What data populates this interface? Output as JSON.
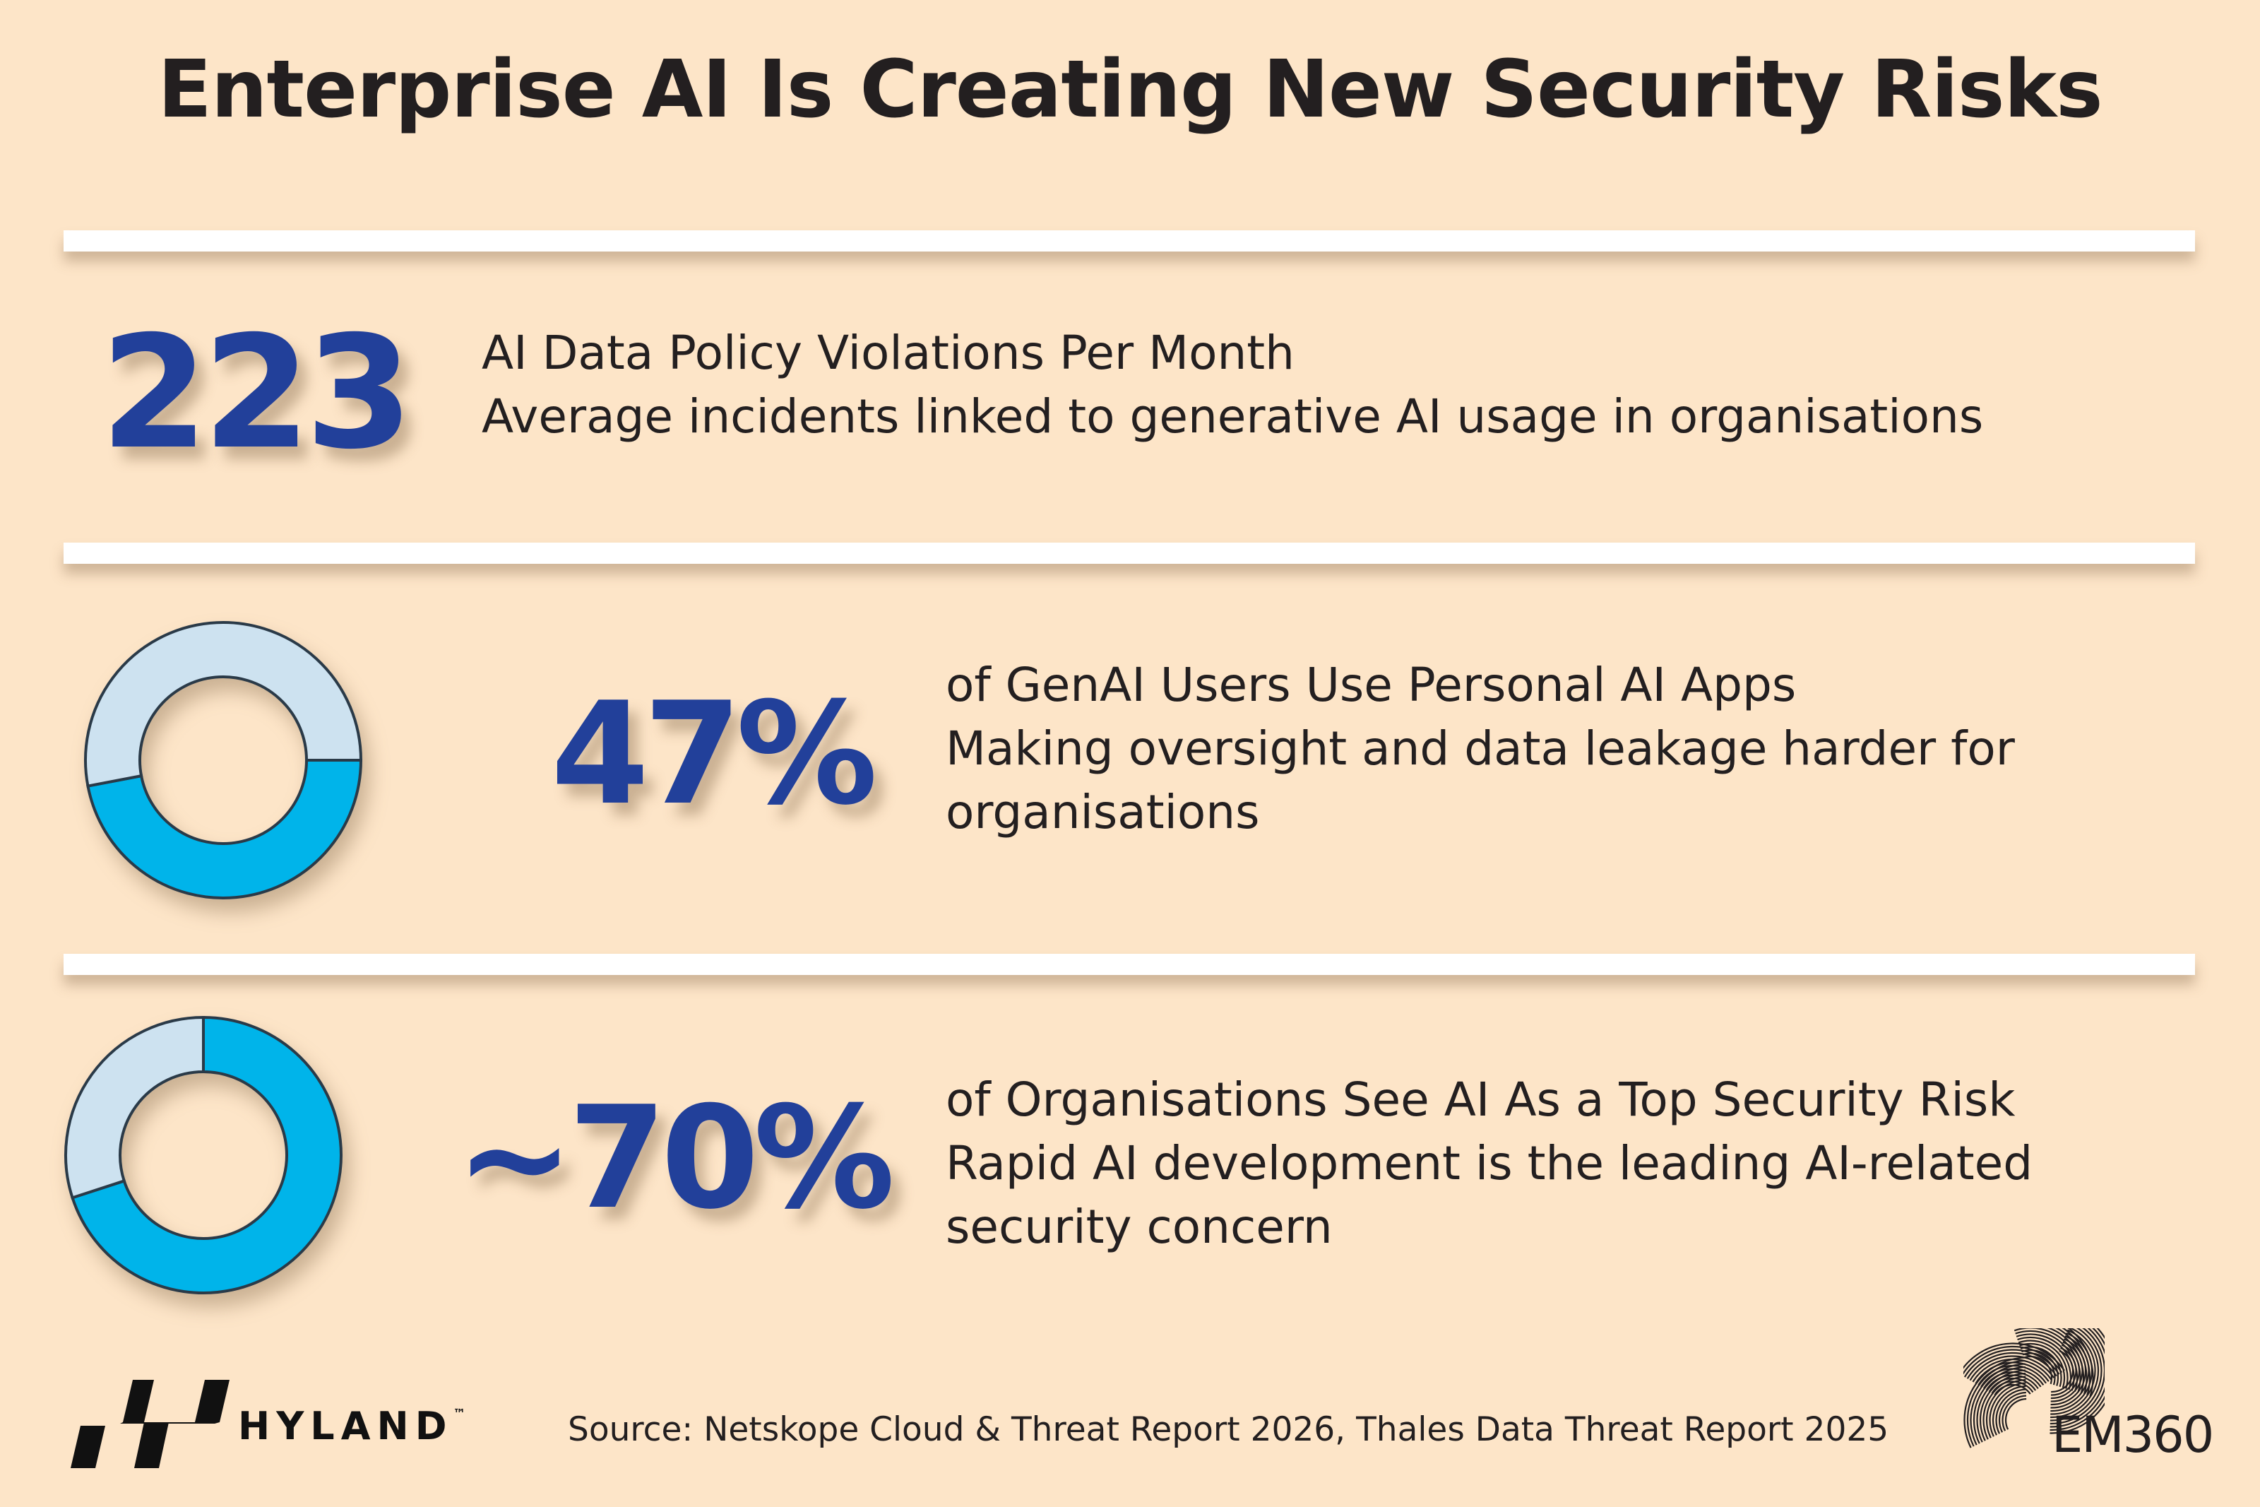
{
  "title": "Enterprise AI Is Creating New Security Risks",
  "colors": {
    "background": "#fde5c8",
    "accent_blue": "#22409a",
    "cyan": "#00b4ea",
    "light_blue": "#cde2f0",
    "divider": "#ffffff"
  },
  "stats": [
    {
      "value": "223",
      "heading": "AI Data Policy Violations Per Month",
      "lines": [
        "Average incidents linked to generative AI usage in organisations"
      ]
    },
    {
      "value": "47%",
      "percent": 47,
      "heading": "of GenAI Users Use Personal AI Apps",
      "lines": [
        "Making oversight and data leakage harder for",
        "organisations"
      ]
    },
    {
      "value": "~70%",
      "percent": 70,
      "heading": "of Organisations See AI As a Top Security Risk",
      "lines": [
        "Rapid AI development is the leading AI-related",
        "security concern"
      ]
    }
  ],
  "footer": {
    "source": "Source: Netskope Cloud & Threat Report 2026, Thales Data Threat Report 2025",
    "left_logo": "HYLAND",
    "left_logo_tm": "™",
    "right_logo": "EM360"
  }
}
